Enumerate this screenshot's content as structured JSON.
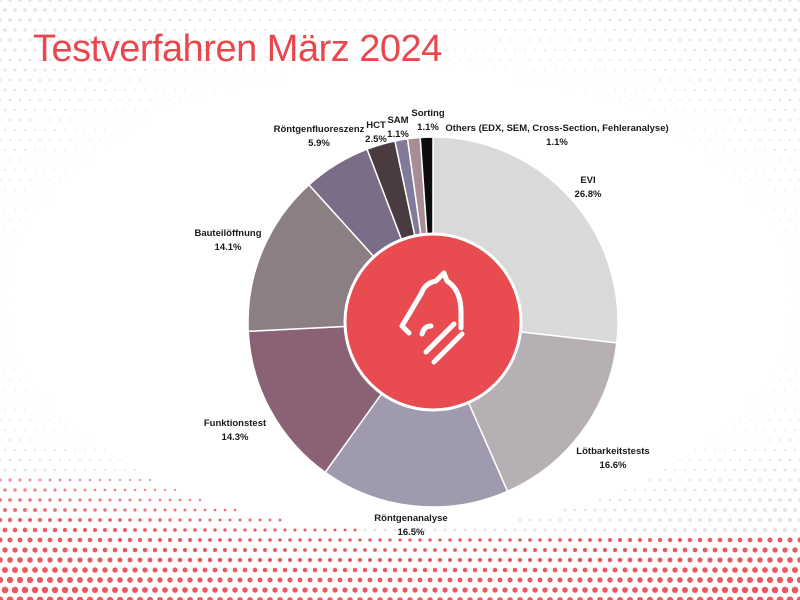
{
  "title": "Testverfahren März 2024",
  "colors": {
    "accent": "#e8474d",
    "dots": "#e8474d"
  },
  "logo_icon": "knight-chess-piece-icon",
  "chart_data": {
    "type": "pie",
    "variant": "donut",
    "title": "Testverfahren März 2024",
    "slices": [
      {
        "label": "EVI",
        "value": 26.8,
        "display": "26.8%",
        "color": "#d9d9d9"
      },
      {
        "label": "Lötbarkeitstests",
        "value": 16.6,
        "display": "16.6%",
        "color": "#b6b0b4"
      },
      {
        "label": "Röntgenanalyse",
        "value": 16.5,
        "display": "16.5%",
        "color": "#9f9aae"
      },
      {
        "label": "Funktionstest",
        "value": 14.3,
        "display": "14.3%",
        "color": "#8b6275"
      },
      {
        "label": "Bauteilöffnung",
        "value": 14.1,
        "display": "14.1%",
        "color": "#8b7f84"
      },
      {
        "label": "Röntgenfluoreszenz",
        "value": 5.9,
        "display": "5.9%",
        "color": "#7b6c87"
      },
      {
        "label": "HCT",
        "value": 2.5,
        "display": "2.5%",
        "color": "#4a3b40"
      },
      {
        "label": "SAM",
        "value": 1.1,
        "display": "1.1%",
        "color": "#817a9b"
      },
      {
        "label": "Sorting",
        "value": 1.1,
        "display": "1.1%",
        "color": "#a88e92"
      },
      {
        "label": "Others (EDX, SEM, Cross-Section, Fehleranalyse)",
        "value": 1.1,
        "display": "1.1%",
        "color": "#0d0d0d"
      }
    ]
  }
}
